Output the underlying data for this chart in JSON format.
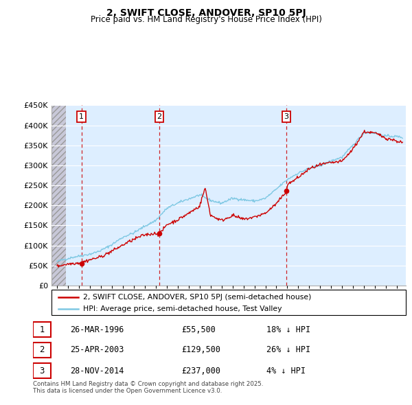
{
  "title": "2, SWIFT CLOSE, ANDOVER, SP10 5PJ",
  "subtitle": "Price paid vs. HM Land Registry's House Price Index (HPI)",
  "legend_line1": "2, SWIFT CLOSE, ANDOVER, SP10 5PJ (semi-detached house)",
  "legend_line2": "HPI: Average price, semi-detached house, Test Valley",
  "footer": "Contains HM Land Registry data © Crown copyright and database right 2025.\nThis data is licensed under the Open Government Licence v3.0.",
  "sales": [
    {
      "num": 1,
      "date": "26-MAR-1996",
      "price": 55500,
      "pct": "18% ↓ HPI",
      "year": 1996.23
    },
    {
      "num": 2,
      "date": "25-APR-2003",
      "price": 129500,
      "pct": "26% ↓ HPI",
      "year": 2003.32
    },
    {
      "num": 3,
      "date": "28-NOV-2014",
      "price": 237000,
      "pct": "4% ↓ HPI",
      "year": 2014.91
    }
  ],
  "hpi_color": "#7ec8e3",
  "price_color": "#cc0000",
  "dashed_color": "#cc0000",
  "ylim": [
    0,
    450000
  ],
  "xlim_start": 1993.5,
  "xlim_end": 2025.8,
  "hpi_years": [
    1994,
    1995,
    1996,
    1997,
    1998,
    1999,
    2000,
    2001,
    2002,
    2003,
    2004,
    2005,
    2006,
    2007,
    2008,
    2009,
    2010,
    2011,
    2012,
    2013,
    2014,
    2015,
    2016,
    2017,
    2018,
    2019,
    2020,
    2021,
    2022,
    2023,
    2024,
    2025.5
  ],
  "hpi_vals": [
    60000,
    65000,
    72000,
    80000,
    90000,
    102000,
    118000,
    130000,
    150000,
    165000,
    192000,
    203000,
    215000,
    228000,
    215000,
    205000,
    215000,
    213000,
    213000,
    220000,
    240000,
    262000,
    280000,
    295000,
    302000,
    310000,
    318000,
    350000,
    385000,
    383000,
    372000,
    368000
  ],
  "price_years": [
    1994,
    1995,
    1996,
    1996.23,
    1997,
    1998,
    1999,
    2000,
    2001,
    2002,
    2003,
    2003.32,
    2004,
    2005,
    2006,
    2007,
    2007.5,
    2008,
    2009,
    2010,
    2011,
    2012,
    2013,
    2014,
    2014.91,
    2015,
    2016,
    2017,
    2018,
    2019,
    2020,
    2021,
    2022,
    2023,
    2024,
    2025.5
  ],
  "price_vals": [
    48000,
    51000,
    54000,
    55500,
    65000,
    75000,
    88000,
    100000,
    112000,
    125000,
    132000,
    129500,
    155000,
    165000,
    178000,
    195000,
    242000,
    175000,
    165000,
    178000,
    165000,
    168000,
    178000,
    205000,
    237000,
    255000,
    272000,
    290000,
    298000,
    305000,
    312000,
    345000,
    385000,
    378000,
    365000,
    358000
  ]
}
